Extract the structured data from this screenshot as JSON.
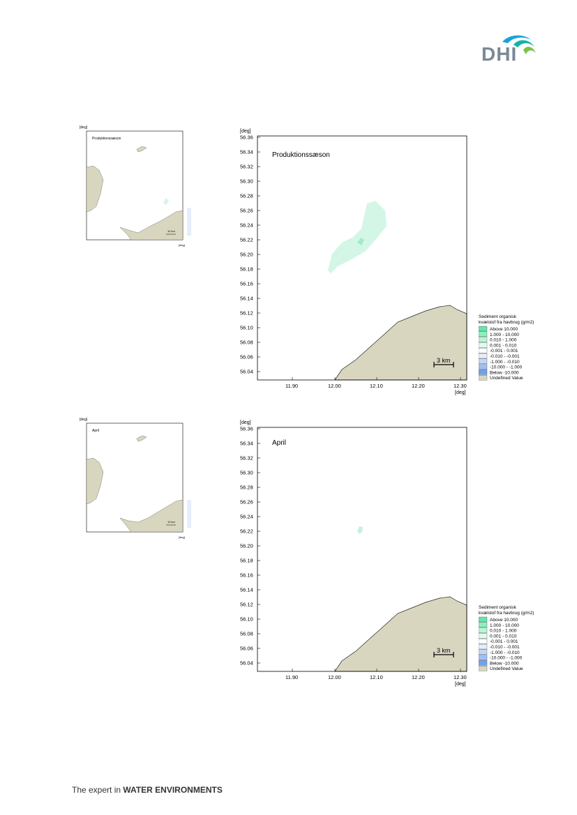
{
  "header": {
    "logo_text": "DHI"
  },
  "footer": {
    "prefix": "The expert in ",
    "emphasis": "WATER ENVIRONMENTS"
  },
  "panels": [
    {
      "title": "Produktionssæson",
      "unit_top": "[deg]",
      "unit_bottom": "[deg]",
      "y_ticks": [
        "56.36",
        "56.34",
        "56.32",
        "56.30",
        "56.28",
        "56.26",
        "56.24",
        "56.22",
        "56.20",
        "56.18",
        "56.16",
        "56.14",
        "56.12",
        "56.10",
        "56.08",
        "56.06",
        "56.04"
      ],
      "x_ticks": [
        "11.90",
        "12.00",
        "12.10",
        "12.20",
        "12.30"
      ],
      "scale_label": "3 km"
    },
    {
      "title": "April",
      "unit_top": "[deg]",
      "unit_bottom": "[deg]",
      "y_ticks": [
        "56.36",
        "56.34",
        "56.32",
        "56.30",
        "56.28",
        "56.26",
        "56.24",
        "56.22",
        "56.20",
        "56.18",
        "56.16",
        "56.14",
        "56.12",
        "56.10",
        "56.08",
        "56.06",
        "56.04"
      ],
      "x_ticks": [
        "11.90",
        "12.00",
        "12.10",
        "12.20",
        "12.30"
      ],
      "scale_label": "3 km"
    }
  ],
  "overview_panels": [
    {
      "title": "Produktionssæson",
      "unit_top": "[deg]",
      "unit_bottom": "[deg]",
      "scale_label": "10 km"
    },
    {
      "title": "April",
      "unit_top": "[deg]",
      "unit_bottom": "[deg]",
      "scale_label": "10 km"
    }
  ],
  "legend": {
    "title_line1": "Sediment organisk",
    "title_line2": "kvælstof fra havbrug (g/m2)",
    "items": [
      {
        "label": "Above    10.000",
        "color": "#66e6a8"
      },
      {
        "label": "1.000 -  10.000",
        "color": "#8cf0bc"
      },
      {
        "label": "0.010 -   1.000",
        "color": "#b8f5d4"
      },
      {
        "label": "0.001 -   0.010",
        "color": "#e0fbee"
      },
      {
        "label": "-0.001 -   0.001",
        "color": "#ffffff"
      },
      {
        "label": "-0.010 -  -0.001",
        "color": "#e6eefc"
      },
      {
        "label": "-1.000 -  -0.010",
        "color": "#c2d7f8"
      },
      {
        "label": "-10.000 -  -1.000",
        "color": "#9ebff2"
      },
      {
        "label": "Below   -10.000",
        "color": "#6fa2ec"
      },
      {
        "label": "Undefined Value",
        "color": "#d9d6c0"
      }
    ]
  },
  "colors": {
    "land": "#d9d6c0",
    "plume_light": "#d3f6e6",
    "plume_mid": "#9eedc8",
    "frame": "#000000",
    "logo": "#7a8996"
  }
}
